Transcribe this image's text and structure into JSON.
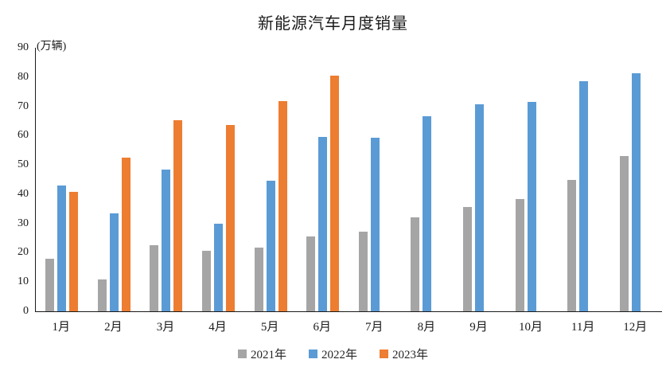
{
  "chart_data": {
    "type": "bar",
    "title": "新能源汽车月度销量",
    "ylabel": "(万辆)",
    "xlabel": "",
    "categories": [
      "1月",
      "2月",
      "3月",
      "4月",
      "5月",
      "6月",
      "7月",
      "8月",
      "9月",
      "10月",
      "11月",
      "12月"
    ],
    "series": [
      {
        "name": "2021年",
        "color": "#A5A5A5",
        "values": [
          17.9,
          11.0,
          22.6,
          20.6,
          21.7,
          25.6,
          27.1,
          32.1,
          35.7,
          38.3,
          45.0,
          53.1
        ]
      },
      {
        "name": "2022年",
        "color": "#5B9BD5",
        "values": [
          43.1,
          33.4,
          48.4,
          29.9,
          44.7,
          59.6,
          59.3,
          66.6,
          70.8,
          71.4,
          78.6,
          81.4
        ]
      },
      {
        "name": "2023年",
        "color": "#ED7D31",
        "values": [
          40.8,
          52.5,
          65.3,
          63.6,
          71.7,
          80.6,
          null,
          null,
          null,
          null,
          null,
          null
        ]
      }
    ],
    "ylim": [
      0,
      90
    ],
    "ytick_step": 10,
    "grid": false,
    "legend_position": "bottom"
  },
  "colors": {
    "axis": "#1a1a1a",
    "text": "#1a1a1a"
  }
}
